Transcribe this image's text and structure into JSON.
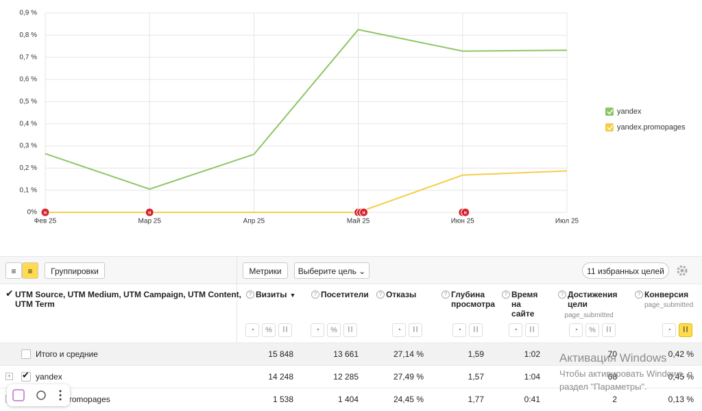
{
  "chart_data": {
    "type": "line",
    "categories": [
      "Фев 25",
      "Мар 25",
      "Апр 25",
      "Май 25",
      "Июн 25",
      "Июл 25"
    ],
    "series": [
      {
        "name": "yandex",
        "color": "#8cc665",
        "values": [
          0.265,
          0.105,
          0.262,
          0.825,
          0.728,
          0.732
        ]
      },
      {
        "name": "yandex.promopages",
        "color": "#f5cd47",
        "values": [
          0,
          0,
          0,
          0,
          0.168,
          0.187
        ]
      }
    ],
    "ylim": [
      0,
      0.9
    ],
    "yticks": [
      {
        "value": 0,
        "label": "0%"
      },
      {
        "value": 0.1,
        "label": "0,1 %"
      },
      {
        "value": 0.2,
        "label": "0,2 %"
      },
      {
        "value": 0.3,
        "label": "0,3 %"
      },
      {
        "value": 0.4,
        "label": "0,4 %"
      },
      {
        "value": 0.5,
        "label": "0,5 %"
      },
      {
        "value": 0.6,
        "label": "0,6 %"
      },
      {
        "value": 0.7,
        "label": "0,7 %"
      },
      {
        "value": 0.8,
        "label": "0,8 %"
      },
      {
        "value": 0.9,
        "label": "0,9 %"
      }
    ],
    "grid": true,
    "legend": "right",
    "events": [
      {
        "x": "Фев 25",
        "label": "н"
      },
      {
        "x": "Мар 25",
        "label": "н"
      },
      {
        "x": "Май 25",
        "label": "н"
      },
      {
        "x": "Май 25",
        "label": "н"
      },
      {
        "x": "Май 25",
        "label": "н"
      },
      {
        "x": "Июн 25",
        "label": "н"
      },
      {
        "x": "Июн 25",
        "label": "н"
      }
    ]
  },
  "toolbar": {
    "groupings": "Группировки",
    "metrics": "Метрики",
    "goal_select": "Выберите цель",
    "favorites": "11 избранных целей"
  },
  "table": {
    "icon_percent": "%",
    "columns": [
      {
        "title": "UTM Source, UTM Medium, UTM Campaign, UTM Content, UTM Term"
      },
      {
        "title": "Визиты",
        "sort": "▼"
      },
      {
        "title": "Посетители"
      },
      {
        "title": "Отказы"
      },
      {
        "title": "Глубина просмотра"
      },
      {
        "title": "Время на сайте"
      },
      {
        "title": "Достижения цели",
        "subtitle": "page_submitted"
      },
      {
        "title": "Конверсия",
        "subtitle": "page_submitted"
      }
    ],
    "rows": [
      {
        "label": "Итого и средние",
        "cells": [
          "15 848",
          "13 661",
          "27,14 %",
          "1,59",
          "1:02",
          "70",
          "0,42 %"
        ]
      },
      {
        "label": "yandex",
        "cells": [
          "14 248",
          "12 285",
          "27,49 %",
          "1,57",
          "1:04",
          "68",
          "0,45 %"
        ]
      },
      {
        "label": "yandex.promopages",
        "cells": [
          "1 538",
          "1 404",
          "24,45 %",
          "1,77",
          "0:41",
          "2",
          "0,13 %"
        ]
      }
    ]
  },
  "watermark": {
    "title": "Активация Windows",
    "line_1": "Чтобы активировать Windows, п",
    "line_2": "раздел \"Параметры\"."
  }
}
